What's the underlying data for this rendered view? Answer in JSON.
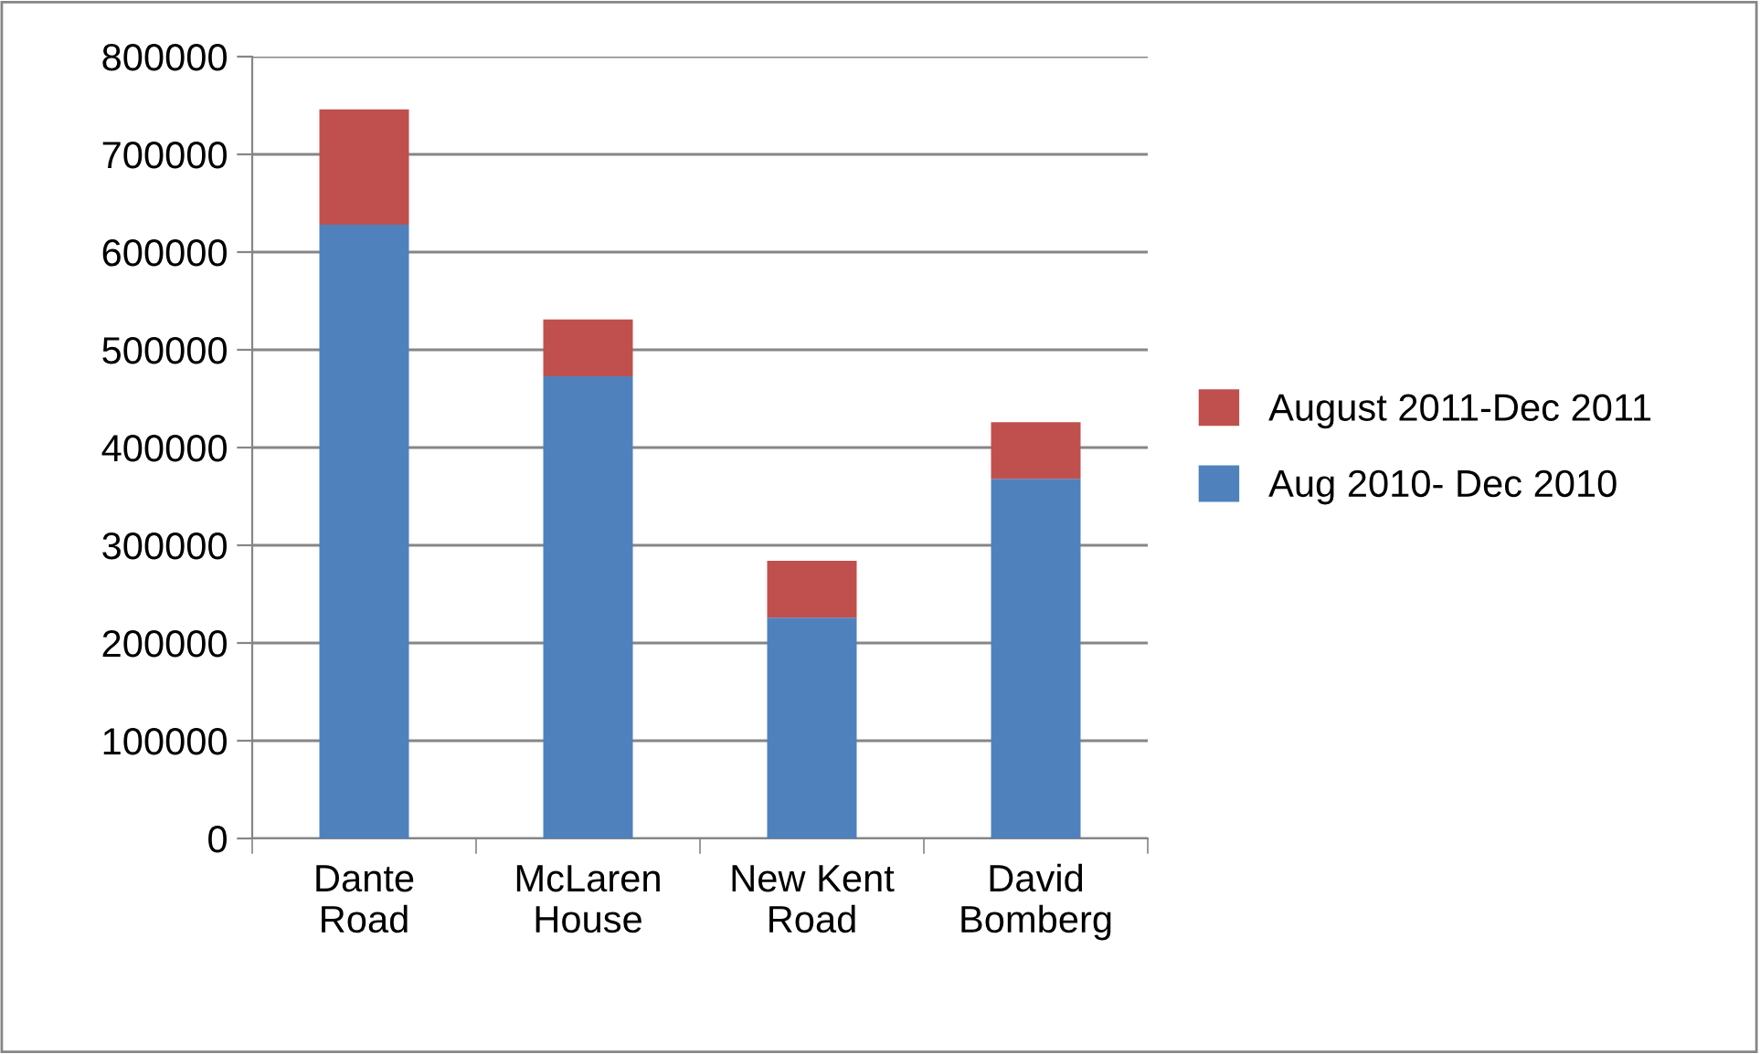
{
  "chart_data": {
    "type": "bar",
    "stacked": true,
    "categories": [
      "Dante\nRoad",
      "McLaren\nHouse",
      "New Kent\nRoad",
      "David\nBomberg"
    ],
    "series": [
      {
        "name": "Aug 2010- Dec 2010",
        "color": "#4f81bd",
        "values": [
          628000,
          473000,
          226000,
          368000
        ]
      },
      {
        "name": "August 2011-Dec 2011",
        "color": "#c0504d",
        "values": [
          118000,
          58000,
          58000,
          58000
        ]
      }
    ],
    "ylim": [
      0,
      800000
    ],
    "yticks": [
      0,
      100000,
      200000,
      300000,
      400000,
      500000,
      600000,
      700000,
      800000
    ],
    "grid": "y",
    "legend": "right"
  }
}
